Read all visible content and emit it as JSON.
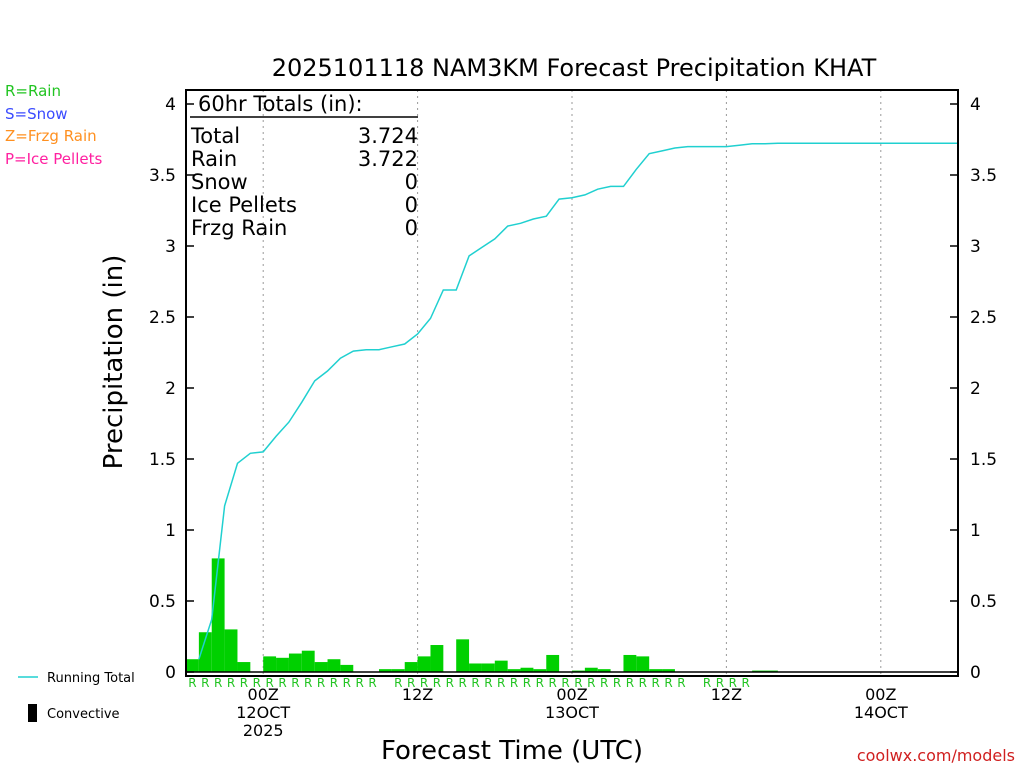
{
  "chart_data": {
    "type": "bar",
    "title": "2025101118 NAM3KM Forecast Precipitation KHAT",
    "xlabel": "Forecast Time (UTC)",
    "ylabel": "Precipitation (in)",
    "ylim": [
      0,
      4.1
    ],
    "yticks": [
      "0",
      "0.5",
      "1",
      "1.5",
      "2",
      "2.5",
      "3",
      "3.5",
      "4"
    ],
    "xlim": [
      0,
      60
    ],
    "xticks": [
      {
        "hour": 6,
        "line1": "00Z",
        "line2": "12OCT",
        "line3": "2025"
      },
      {
        "hour": 18,
        "line1": "12Z",
        "line2": "",
        "line3": ""
      },
      {
        "hour": 30,
        "line1": "00Z",
        "line2": "13OCT",
        "line3": ""
      },
      {
        "hour": 42,
        "line1": "12Z",
        "line2": "",
        "line3": ""
      },
      {
        "hour": 54,
        "line1": "00Z",
        "line2": "14OCT",
        "line3": ""
      }
    ],
    "hourly_precip": [
      0.09,
      0.28,
      0.8,
      0.3,
      0.07,
      0.0,
      0.11,
      0.1,
      0.13,
      0.15,
      0.07,
      0.09,
      0.05,
      0.0,
      0.0,
      0.02,
      0.02,
      0.07,
      0.11,
      0.19,
      0.0,
      0.23,
      0.06,
      0.06,
      0.08,
      0.02,
      0.03,
      0.02,
      0.12,
      0.0,
      0.01,
      0.03,
      0.02,
      0.0,
      0.12,
      0.11,
      0.02,
      0.02,
      0.0,
      0.0,
      0.0,
      0.0,
      0.0,
      0.0,
      0.01,
      0.01,
      0.0,
      0.0,
      0.0,
      0.0,
      0.0,
      0.0,
      0.0,
      0.0,
      0.0,
      0.0,
      0.0,
      0.0,
      0.0,
      0.0
    ],
    "running_total": {
      "hours": [
        1,
        2,
        3,
        4,
        5,
        6,
        7,
        8,
        9,
        10,
        11,
        12,
        13,
        14,
        15,
        16,
        17,
        18,
        19,
        20,
        21,
        22,
        23,
        24,
        25,
        26,
        27,
        28,
        29,
        30,
        31,
        32,
        33,
        34,
        35,
        36,
        37,
        38,
        39,
        40,
        41,
        42,
        43,
        44,
        45,
        46,
        60
      ],
      "values": [
        0.09,
        0.37,
        1.17,
        1.47,
        1.54,
        1.55,
        1.66,
        1.76,
        1.9,
        2.05,
        2.12,
        2.21,
        2.26,
        2.27,
        2.27,
        2.29,
        2.31,
        2.38,
        2.49,
        2.69,
        2.69,
        2.93,
        2.99,
        3.05,
        3.14,
        3.16,
        3.19,
        3.21,
        3.33,
        3.34,
        3.36,
        3.4,
        3.42,
        3.42,
        3.54,
        3.65,
        3.67,
        3.69,
        3.7,
        3.7,
        3.7,
        3.7,
        3.71,
        3.72,
        3.72,
        3.724,
        3.724
      ]
    },
    "ptype_row": {
      "hours": [
        1,
        2,
        3,
        4,
        5,
        6,
        7,
        8,
        9,
        10,
        11,
        12,
        13,
        14,
        15,
        17,
        18,
        19,
        20,
        21,
        22,
        23,
        24,
        25,
        26,
        27,
        28,
        29,
        30,
        31,
        32,
        33,
        34,
        35,
        36,
        37,
        38,
        39,
        41,
        42,
        43,
        44
      ],
      "symbol": "R"
    },
    "series": [
      {
        "name": "Running Total",
        "color": "#20d0d0"
      },
      {
        "name": "Convective",
        "color": "#000000"
      }
    ],
    "bar_color": "#00d000",
    "ptype_legend": [
      {
        "label": "R=Rain",
        "color": "#22c422"
      },
      {
        "label": "S=Snow",
        "color": "#3a4bff"
      },
      {
        "label": "Z=Frzg Rain",
        "color": "#ff9020"
      },
      {
        "label": "P=Ice Pellets",
        "color": "#ff20a0"
      }
    ],
    "totals_box": {
      "header": "60hr Totals (in):",
      "rows": [
        {
          "label": "Total",
          "value": "3.724"
        },
        {
          "label": "Rain",
          "value": "3.722"
        },
        {
          "label": "Snow",
          "value": "0"
        },
        {
          "label": "Ice Pellets",
          "value": "0"
        },
        {
          "label": "Frzg Rain",
          "value": "0"
        }
      ]
    },
    "credit": "coolwx.com/models"
  }
}
